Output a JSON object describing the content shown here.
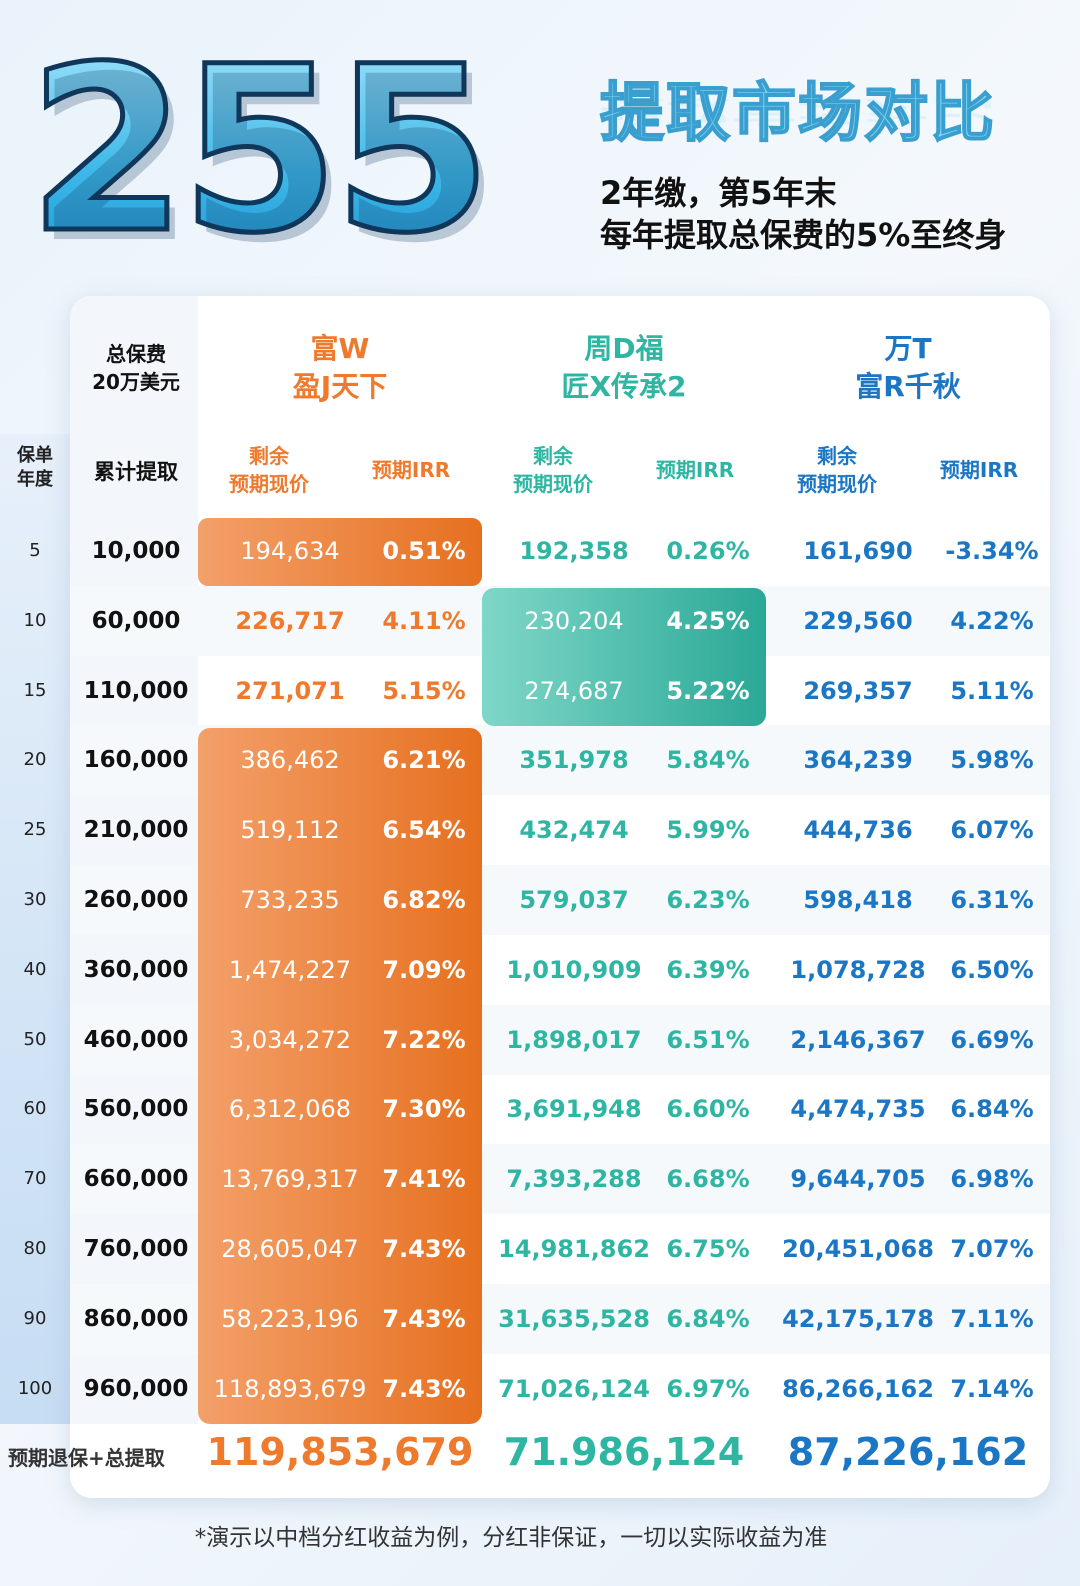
{
  "hero": {
    "number": "255",
    "title": "提取市场对比",
    "subtitle_line1": "2年缴，第5年末",
    "subtitle_line2": "每年提取总保费的5%至终身"
  },
  "table": {
    "premium_label_1": "总保费",
    "premium_label_2": "20万美元",
    "year_label_1": "保单",
    "year_label_2": "年度",
    "cum_label": "累计提取",
    "products": [
      {
        "line1": "富W",
        "line2": "盈J天下",
        "color": "#ee7a2e"
      },
      {
        "line1": "周D福",
        "line2": "匠X传承2",
        "color": "#2fb6a3"
      },
      {
        "line1": "万T",
        "line2": "富R千秋",
        "color": "#1b76c4"
      }
    ],
    "sub_value_1": "剩余",
    "sub_value_2": "预期现价",
    "sub_irr": "预期IRR",
    "rows": [
      {
        "year": "5",
        "cum": "10,000",
        "v": [
          [
            "194,634",
            "0.51%"
          ],
          [
            "192,358",
            "0.26%"
          ],
          [
            "161,690",
            "-3.34%"
          ]
        ]
      },
      {
        "year": "10",
        "cum": "60,000",
        "v": [
          [
            "226,717",
            "4.11%"
          ],
          [
            "230,204",
            "4.25%"
          ],
          [
            "229,560",
            "4.22%"
          ]
        ]
      },
      {
        "year": "15",
        "cum": "110,000",
        "v": [
          [
            "271,071",
            "5.15%"
          ],
          [
            "274,687",
            "5.22%"
          ],
          [
            "269,357",
            "5.11%"
          ]
        ]
      },
      {
        "year": "20",
        "cum": "160,000",
        "v": [
          [
            "386,462",
            "6.21%"
          ],
          [
            "351,978",
            "5.84%"
          ],
          [
            "364,239",
            "5.98%"
          ]
        ]
      },
      {
        "year": "25",
        "cum": "210,000",
        "v": [
          [
            "519,112",
            "6.54%"
          ],
          [
            "432,474",
            "5.99%"
          ],
          [
            "444,736",
            "6.07%"
          ]
        ]
      },
      {
        "year": "30",
        "cum": "260,000",
        "v": [
          [
            "733,235",
            "6.82%"
          ],
          [
            "579,037",
            "6.23%"
          ],
          [
            "598,418",
            "6.31%"
          ]
        ]
      },
      {
        "year": "40",
        "cum": "360,000",
        "v": [
          [
            "1,474,227",
            "7.09%"
          ],
          [
            "1,010,909",
            "6.39%"
          ],
          [
            "1,078,728",
            "6.50%"
          ]
        ]
      },
      {
        "year": "50",
        "cum": "460,000",
        "v": [
          [
            "3,034,272",
            "7.22%"
          ],
          [
            "1,898,017",
            "6.51%"
          ],
          [
            "2,146,367",
            "6.69%"
          ]
        ]
      },
      {
        "year": "60",
        "cum": "560,000",
        "v": [
          [
            "6,312,068",
            "7.30%"
          ],
          [
            "3,691,948",
            "6.60%"
          ],
          [
            "4,474,735",
            "6.84%"
          ]
        ]
      },
      {
        "year": "70",
        "cum": "660,000",
        "v": [
          [
            "13,769,317",
            "7.41%"
          ],
          [
            "7,393,288",
            "6.68%"
          ],
          [
            "9,644,705",
            "6.98%"
          ]
        ]
      },
      {
        "year": "80",
        "cum": "760,000",
        "v": [
          [
            "28,605,047",
            "7.43%"
          ],
          [
            "14,981,862",
            "6.75%"
          ],
          [
            "20,451,068",
            "7.07%"
          ]
        ]
      },
      {
        "year": "90",
        "cum": "860,000",
        "v": [
          [
            "58,223,196",
            "7.43%"
          ],
          [
            "31,635,528",
            "6.84%"
          ],
          [
            "42,175,178",
            "7.11%"
          ]
        ]
      },
      {
        "year": "100",
        "cum": "960,000",
        "v": [
          [
            "118,893,679",
            "7.43%"
          ],
          [
            "71,026,124",
            "6.97%"
          ],
          [
            "86,266,162",
            "7.14%"
          ]
        ]
      }
    ],
    "total_label": "预期退保+总提取",
    "totals": [
      "119,853,679",
      "71.986,124",
      "87,226,162"
    ]
  },
  "footnote": "*演示以中档分红收益为例，分红非保证，一切以实际收益为准",
  "colors": {
    "orange": "#ee7a2e",
    "teal": "#2fb6a3",
    "blue": "#1b76c4"
  }
}
